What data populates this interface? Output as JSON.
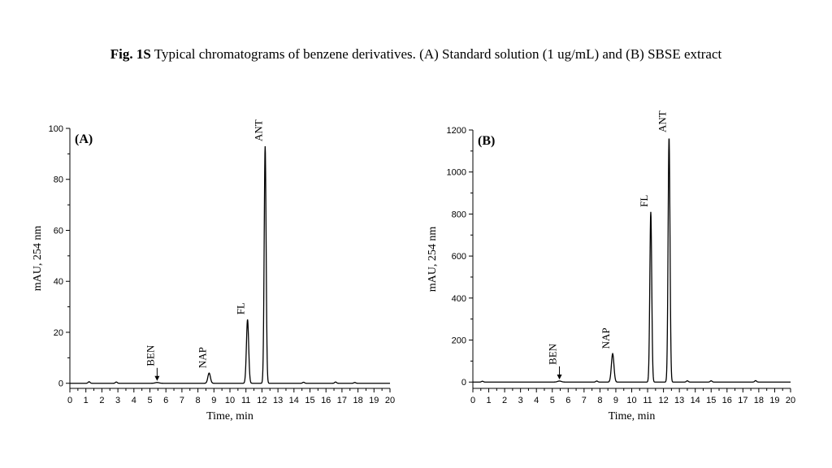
{
  "figure": {
    "caption_bold": "Fig. 1S",
    "caption_text": " Typical chromatograms of benzene derivatives. (A) Standard solution (1 ug/mL) and (B) SBSE extract"
  },
  "chart_data": [
    {
      "type": "line",
      "panel_label": "(A)",
      "xlabel": "Time, min",
      "ylabel": "mAU, 254 nm",
      "xlim": [
        0,
        20
      ],
      "ylim": [
        -2,
        100
      ],
      "xticks": [
        0,
        1,
        2,
        3,
        4,
        5,
        6,
        7,
        8,
        9,
        10,
        11,
        12,
        13,
        14,
        15,
        16,
        17,
        18,
        19,
        20
      ],
      "yticks": [
        0,
        20,
        40,
        60,
        80,
        100
      ],
      "baseline": 0,
      "noise": [
        {
          "x": 1.2,
          "y": 0.6
        },
        {
          "x": 2.9,
          "y": 0.5
        },
        {
          "x": 14.6,
          "y": 0.4
        },
        {
          "x": 16.6,
          "y": 0.5
        },
        {
          "x": 17.8,
          "y": 0.3
        }
      ],
      "peaks": [
        {
          "name": "BEN",
          "rt": 5.45,
          "height": 0.3,
          "width": 0.12,
          "arrow": true
        },
        {
          "name": "NAP",
          "rt": 8.7,
          "height": 4,
          "width": 0.08
        },
        {
          "name": "FL",
          "rt": 11.1,
          "height": 25,
          "width": 0.07
        },
        {
          "name": "ANT",
          "rt": 12.2,
          "height": 93,
          "width": 0.06
        }
      ]
    },
    {
      "type": "line",
      "panel_label": "(B)",
      "xlabel": "Time, min",
      "ylabel": "mAU, 254 nm",
      "xlim": [
        0,
        20
      ],
      "ylim": [
        -30,
        1200
      ],
      "xticks": [
        0,
        1,
        2,
        3,
        4,
        5,
        6,
        7,
        8,
        9,
        10,
        11,
        12,
        13,
        14,
        15,
        16,
        17,
        18,
        19,
        20
      ],
      "yticks": [
        0,
        200,
        400,
        600,
        800,
        1000,
        1200
      ],
      "baseline": 0,
      "noise": [
        {
          "x": 0.6,
          "y": 4
        },
        {
          "x": 7.8,
          "y": 5
        },
        {
          "x": 13.5,
          "y": 6
        },
        {
          "x": 15.0,
          "y": 6
        },
        {
          "x": 17.8,
          "y": 7
        }
      ],
      "peaks": [
        {
          "name": "BEN",
          "rt": 5.45,
          "height": 5,
          "width": 0.12,
          "arrow": true
        },
        {
          "name": "NAP",
          "rt": 8.8,
          "height": 135,
          "width": 0.08
        },
        {
          "name": "FL",
          "rt": 11.2,
          "height": 810,
          "width": 0.06
        },
        {
          "name": "ANT",
          "rt": 12.35,
          "height": 1165,
          "width": 0.06
        }
      ]
    }
  ]
}
